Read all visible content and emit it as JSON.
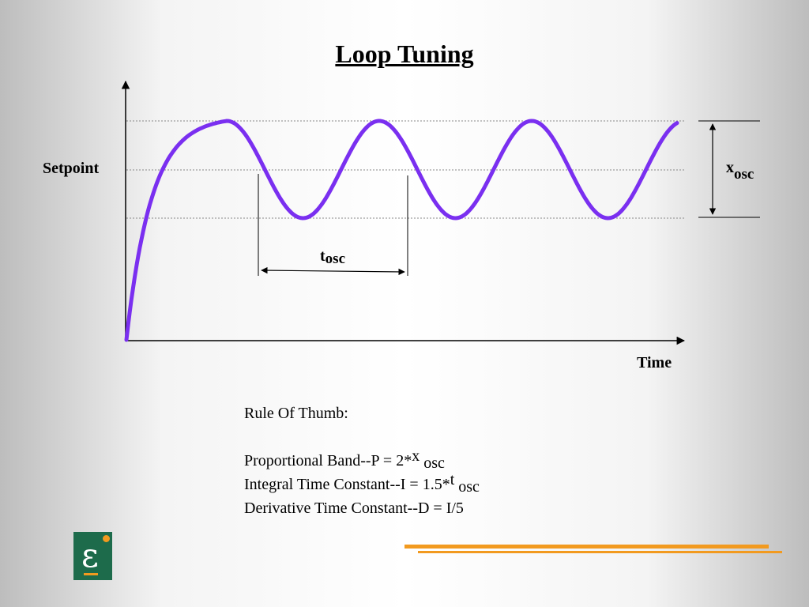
{
  "title": "Loop Tuning",
  "labels": {
    "setpoint": "Setpoint",
    "time": "Time",
    "x_symbol": "x",
    "x_sub": "osc",
    "t_symbol": "t",
    "t_sub": "osc"
  },
  "rules": {
    "heading": "Rule Of Thumb:",
    "p_text": "Proportional Band--P = 2*",
    "p_sym": "x",
    "p_sub": " osc",
    "i_text": "Integral Time Constant--I  = 1.5*",
    "i_sym": "t",
    "i_sub": " osc",
    "d_text": "Derivative Time Constant--D = I/5"
  },
  "colors": {
    "curve": "#7a2ff0",
    "accent": "#f29a1f",
    "logo_bg": "#1d6b4b"
  },
  "icons": {
    "logo": "epsilon-logo-icon"
  }
}
